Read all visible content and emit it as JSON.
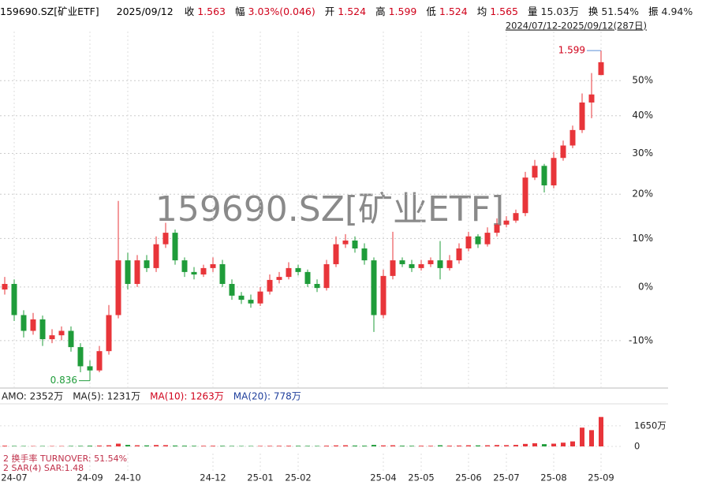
{
  "header": {
    "code": "159690.SZ[矿业ETF]",
    "date": "2025/09/12",
    "items": [
      {
        "label": "收",
        "value": "1.563",
        "color": "#d0021b"
      },
      {
        "label": "幅",
        "value": "3.03%(0.046)",
        "color": "#d0021b"
      },
      {
        "label": "开",
        "value": "1.524",
        "color": "#d0021b"
      },
      {
        "label": "高",
        "value": "1.599",
        "color": "#d0021b"
      },
      {
        "label": "低",
        "value": "1.524",
        "color": "#d0021b"
      },
      {
        "label": "均",
        "value": "1.565",
        "color": "#d0021b"
      },
      {
        "label": "量",
        "value": "15.03万",
        "color": "#222222"
      },
      {
        "label": "换",
        "value": "51.54%",
        "color": "#222222"
      },
      {
        "label": "振",
        "value": "4.94%",
        "color": "#222222"
      }
    ],
    "range": "2024/07/12-2025/09/12(287日)"
  },
  "chart_data": [
    {
      "type": "candlestick",
      "watermark": "159690.SZ[矿业ETF]",
      "log_scale": true,
      "grid": true,
      "up_color": "#e8353a",
      "down_color": "#1f9c3a",
      "open": [
        1.0,
        1.011,
        0.951,
        0.922,
        0.943,
        0.907,
        0.914,
        0.922,
        0.893,
        0.86,
        0.853,
        0.886,
        0.951,
        1.059,
        1.011,
        1.059,
        1.043,
        1.093,
        1.118,
        1.059,
        1.035,
        1.03,
        1.043,
        1.051,
        1.011,
        0.988,
        0.98,
        0.973,
        0.996,
        1.019,
        1.025,
        1.043,
        1.035,
        1.011,
        1.003,
        1.051,
        1.093,
        1.101,
        1.084,
        1.059,
        0.951,
        1.027,
        1.059,
        1.051,
        1.043,
        1.051,
        1.059,
        1.043,
        1.059,
        1.084,
        1.11,
        1.093,
        1.118,
        1.136,
        1.145,
        1.162,
        1.246,
        1.275,
        1.227,
        1.295,
        1.327,
        1.368,
        1.444,
        1.524
      ],
      "high": [
        1.025,
        1.02,
        0.96,
        0.955,
        0.95,
        0.925,
        0.93,
        0.93,
        0.9,
        0.87,
        0.895,
        0.97,
        1.19,
        1.075,
        1.07,
        1.07,
        1.11,
        1.14,
        1.125,
        1.065,
        1.045,
        1.05,
        1.065,
        1.06,
        1.02,
        0.995,
        0.99,
        1.005,
        1.03,
        1.035,
        1.055,
        1.05,
        1.04,
        1.02,
        1.06,
        1.11,
        1.115,
        1.11,
        1.095,
        1.065,
        1.04,
        1.12,
        1.065,
        1.06,
        1.06,
        1.065,
        1.1,
        1.07,
        1.095,
        1.12,
        1.115,
        1.13,
        1.15,
        1.155,
        1.17,
        1.26,
        1.29,
        1.28,
        1.31,
        1.34,
        1.38,
        1.47,
        1.53,
        1.599
      ],
      "low": [
        0.99,
        0.94,
        0.91,
        0.915,
        0.895,
        0.9,
        0.905,
        0.885,
        0.85,
        0.836,
        0.85,
        0.88,
        0.945,
        1.0,
        1.005,
        1.035,
        1.035,
        1.085,
        1.05,
        1.025,
        1.02,
        1.025,
        1.035,
        1.005,
        0.98,
        0.972,
        0.965,
        0.968,
        0.99,
        1.012,
        1.02,
        1.028,
        1.005,
        0.995,
        0.998,
        1.045,
        1.085,
        1.075,
        1.05,
        0.92,
        0.945,
        1.02,
        1.045,
        1.035,
        1.038,
        1.045,
        1.02,
        1.038,
        1.052,
        1.078,
        1.085,
        1.088,
        1.11,
        1.13,
        1.14,
        1.155,
        1.24,
        1.21,
        1.22,
        1.288,
        1.32,
        1.36,
        1.4,
        1.524
      ],
      "close": [
        1.011,
        0.951,
        0.922,
        0.943,
        0.907,
        0.914,
        0.922,
        0.893,
        0.86,
        0.853,
        0.886,
        0.951,
        1.059,
        1.011,
        1.059,
        1.043,
        1.093,
        1.118,
        1.059,
        1.035,
        1.03,
        1.043,
        1.051,
        1.011,
        0.988,
        0.98,
        0.973,
        0.996,
        1.019,
        1.025,
        1.043,
        1.035,
        1.011,
        1.003,
        1.051,
        1.093,
        1.101,
        1.084,
        1.059,
        0.951,
        1.027,
        1.059,
        1.051,
        1.043,
        1.051,
        1.059,
        1.043,
        1.059,
        1.084,
        1.11,
        1.093,
        1.118,
        1.136,
        1.145,
        1.162,
        1.246,
        1.275,
        1.227,
        1.295,
        1.327,
        1.368,
        1.444,
        1.467,
        1.563
      ],
      "xlim": [
        -0.5,
        64
      ],
      "xticks": [
        {
          "value": 1,
          "label": "24-07"
        },
        {
          "value": 9,
          "label": "24-09"
        },
        {
          "value": 13,
          "label": "24-10"
        },
        {
          "value": 22,
          "label": "24-12"
        },
        {
          "value": 27,
          "label": "25-01"
        },
        {
          "value": 31,
          "label": "25-02"
        },
        {
          "value": 40,
          "label": "25-04"
        },
        {
          "value": 44,
          "label": "25-05"
        },
        {
          "value": 49,
          "label": "25-06"
        },
        {
          "value": 53,
          "label": "25-07"
        },
        {
          "value": 58,
          "label": "25-08"
        },
        {
          "value": 63,
          "label": "25-09"
        }
      ],
      "ylim": [
        0.824,
        1.66
      ],
      "yticks": [
        {
          "value": 0.9045,
          "label": "-10%"
        },
        {
          "value": 1.005,
          "label": "0%"
        },
        {
          "value": 1.1055,
          "label": "10%"
        },
        {
          "value": 1.206,
          "label": "20%"
        },
        {
          "value": 1.3065,
          "label": "30%"
        },
        {
          "value": 1.407,
          "label": "40%"
        },
        {
          "value": 1.5075,
          "label": "50%"
        }
      ]
    },
    {
      "type": "bar",
      "color": "#e8353a",
      "legend": [
        {
          "text": "AMO: 2352万",
          "color": "#222222"
        },
        {
          "text": "MA(5): 1231万",
          "color": "#222222"
        },
        {
          "text": "MA(10): 1263万",
          "color": "#d0021b"
        },
        {
          "text": "MA(20): 778万",
          "color": "#1f3f9c"
        }
      ],
      "values": [
        60,
        40,
        35,
        30,
        35,
        30,
        30,
        40,
        45,
        60,
        70,
        90,
        220,
        120,
        90,
        80,
        110,
        100,
        70,
        60,
        50,
        50,
        55,
        50,
        40,
        35,
        35,
        40,
        45,
        50,
        55,
        50,
        45,
        40,
        60,
        80,
        90,
        70,
        60,
        120,
        80,
        90,
        60,
        50,
        55,
        50,
        90,
        60,
        70,
        90,
        80,
        90,
        110,
        100,
        120,
        200,
        250,
        180,
        220,
        300,
        400,
        1500,
        1300,
        2352
      ],
      "ylim": [
        0,
        2900
      ],
      "yticks": [
        0,
        {
          "value": 1650,
          "label": "1650万"
        }
      ],
      "indicators": [
        "2 换手率 TURNOVER: 51.54%",
        "2 SAR(4) SAR:1.48"
      ]
    }
  ]
}
